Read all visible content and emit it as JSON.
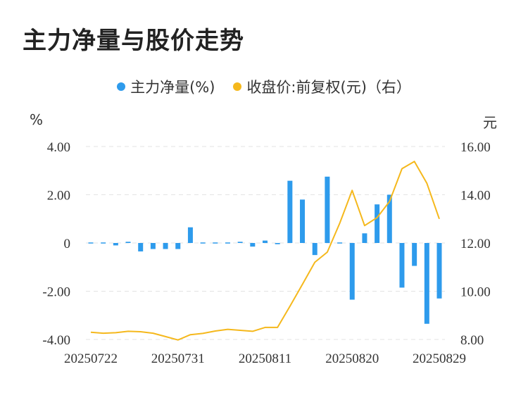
{
  "title": "主力净量与股价走势",
  "chart_data": {
    "type": "bar+line",
    "legend": [
      {
        "name": "主力净量(%)",
        "color": "#2E9BEC"
      },
      {
        "name": "收盘价:前复权(元)（右）",
        "color": "#F5B81C"
      }
    ],
    "y_left_unit": "%",
    "y_right_unit": "元",
    "y_left_ticks": [
      "4.00",
      "2.00",
      "0",
      "-2.00",
      "-4.00"
    ],
    "y_right_ticks": [
      "16.00",
      "14.00",
      "12.00",
      "10.00",
      "8.00"
    ],
    "y_left_range": [
      -4,
      4
    ],
    "y_right_range": [
      8,
      16
    ],
    "x_ticks": [
      {
        "index": 0,
        "label": "20250722"
      },
      {
        "index": 7,
        "label": "20250731"
      },
      {
        "index": 14,
        "label": "20250811"
      },
      {
        "index": 21,
        "label": "20250820"
      },
      {
        "index": 28,
        "label": "20250829"
      }
    ],
    "bars": [
      -0.03,
      -0.03,
      -0.1,
      0.05,
      -0.35,
      -0.25,
      -0.25,
      -0.25,
      0.65,
      -0.03,
      -0.03,
      -0.03,
      0.05,
      -0.15,
      0.1,
      -0.05,
      2.58,
      1.8,
      -0.5,
      2.75,
      0.03,
      -2.35,
      0.4,
      1.6,
      2.0,
      -1.85,
      -0.95,
      -3.35,
      -2.3
    ],
    "line": [
      8.3,
      8.26,
      8.28,
      8.34,
      8.32,
      8.26,
      8.12,
      7.98,
      8.2,
      8.25,
      8.35,
      8.42,
      8.38,
      8.34,
      8.5,
      8.5,
      9.38,
      10.28,
      11.2,
      11.62,
      12.82,
      14.18,
      12.72,
      13.05,
      13.72,
      15.08,
      15.38,
      14.48,
      13.0
    ]
  }
}
